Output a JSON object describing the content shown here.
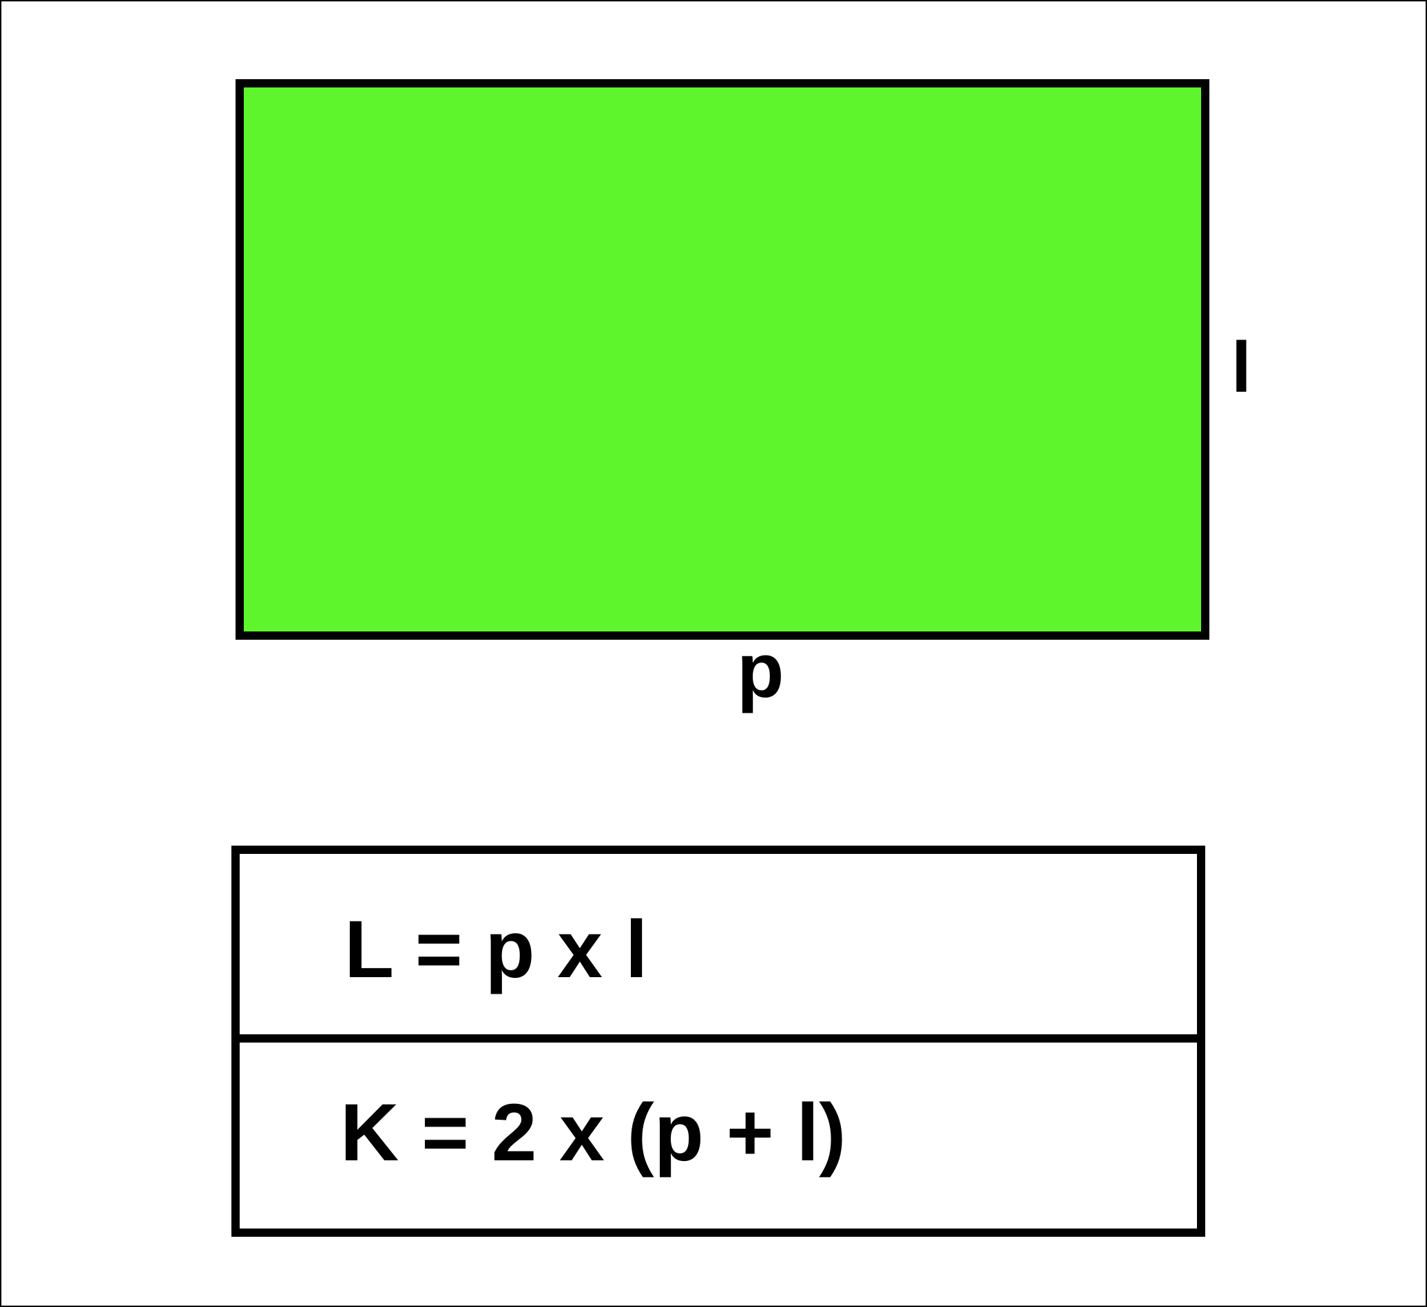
{
  "diagram": {
    "rectangle": {
      "fill_color": "#5ff52c",
      "border_color": "#000000",
      "side_label_right": "l",
      "side_label_bottom": "p"
    },
    "formulas": [
      {
        "text": "L = p x l"
      },
      {
        "text": "K = 2 x (p + l)"
      }
    ]
  }
}
